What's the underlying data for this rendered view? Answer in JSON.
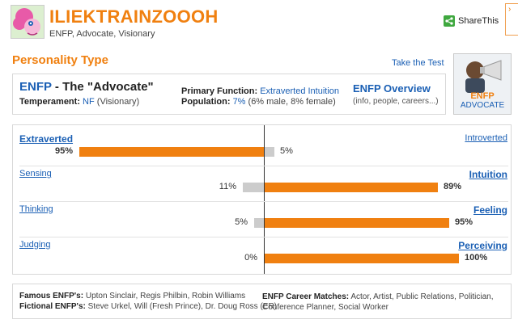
{
  "header": {
    "username": "ILIEKTRAINZOOOH",
    "subtitle": "ENFP, Advocate, Visionary",
    "share_label": "ShareThis"
  },
  "section": {
    "title": "Personality Type",
    "take_test": "Take the Test"
  },
  "type_box": {
    "code": "ENFP",
    "name_rest": " - The \"Advocate\"",
    "temperament_label": "Temperament:",
    "temperament_value": "NF",
    "temperament_note": "(Visionary)",
    "primary_label": "Primary Function:",
    "primary_value": "Extraverted Intuition",
    "population_label": "Population:",
    "population_value": "7%",
    "population_note": "(6% male, 8% female)",
    "overview_title": "ENFP Overview",
    "overview_sub": "(info, people, careers...)"
  },
  "badge": {
    "line1": "ENFP",
    "line2": "ADVOCATE"
  },
  "traits": [
    {
      "left": "Extraverted",
      "right": "Introverted",
      "left_pct": "95%",
      "right_pct": "5%",
      "left_value": 95,
      "right_value": 5,
      "dominant": "left"
    },
    {
      "left": "Sensing",
      "right": "Intuition",
      "left_pct": "11%",
      "right_pct": "89%",
      "left_value": 11,
      "right_value": 89,
      "dominant": "right"
    },
    {
      "left": "Thinking",
      "right": "Feeling",
      "left_pct": "5%",
      "right_pct": "95%",
      "left_value": 5,
      "right_value": 95,
      "dominant": "right"
    },
    {
      "left": "Judging",
      "right": "Perceiving",
      "left_pct": "0%",
      "right_pct": "100%",
      "left_value": 0,
      "right_value": 100,
      "dominant": "right"
    }
  ],
  "footer": {
    "famous_label": "Famous ENFP's:",
    "famous_value": "Upton Sinclair, Regis Philbin, Robin Williams",
    "fictional_label": "Fictional ENFP's:",
    "fictional_value": "Steve Urkel, Will (Fresh Prince), Dr. Doug Ross (ER)",
    "careers_label": "ENFP Career Matches:",
    "careers_value": "Actor, Artist, Public Relations, Politician, Conference Planner, Social Worker"
  },
  "colors": {
    "accent": "#f08010",
    "link": "#1a5fb4",
    "bar_minor": "#cccccc"
  }
}
